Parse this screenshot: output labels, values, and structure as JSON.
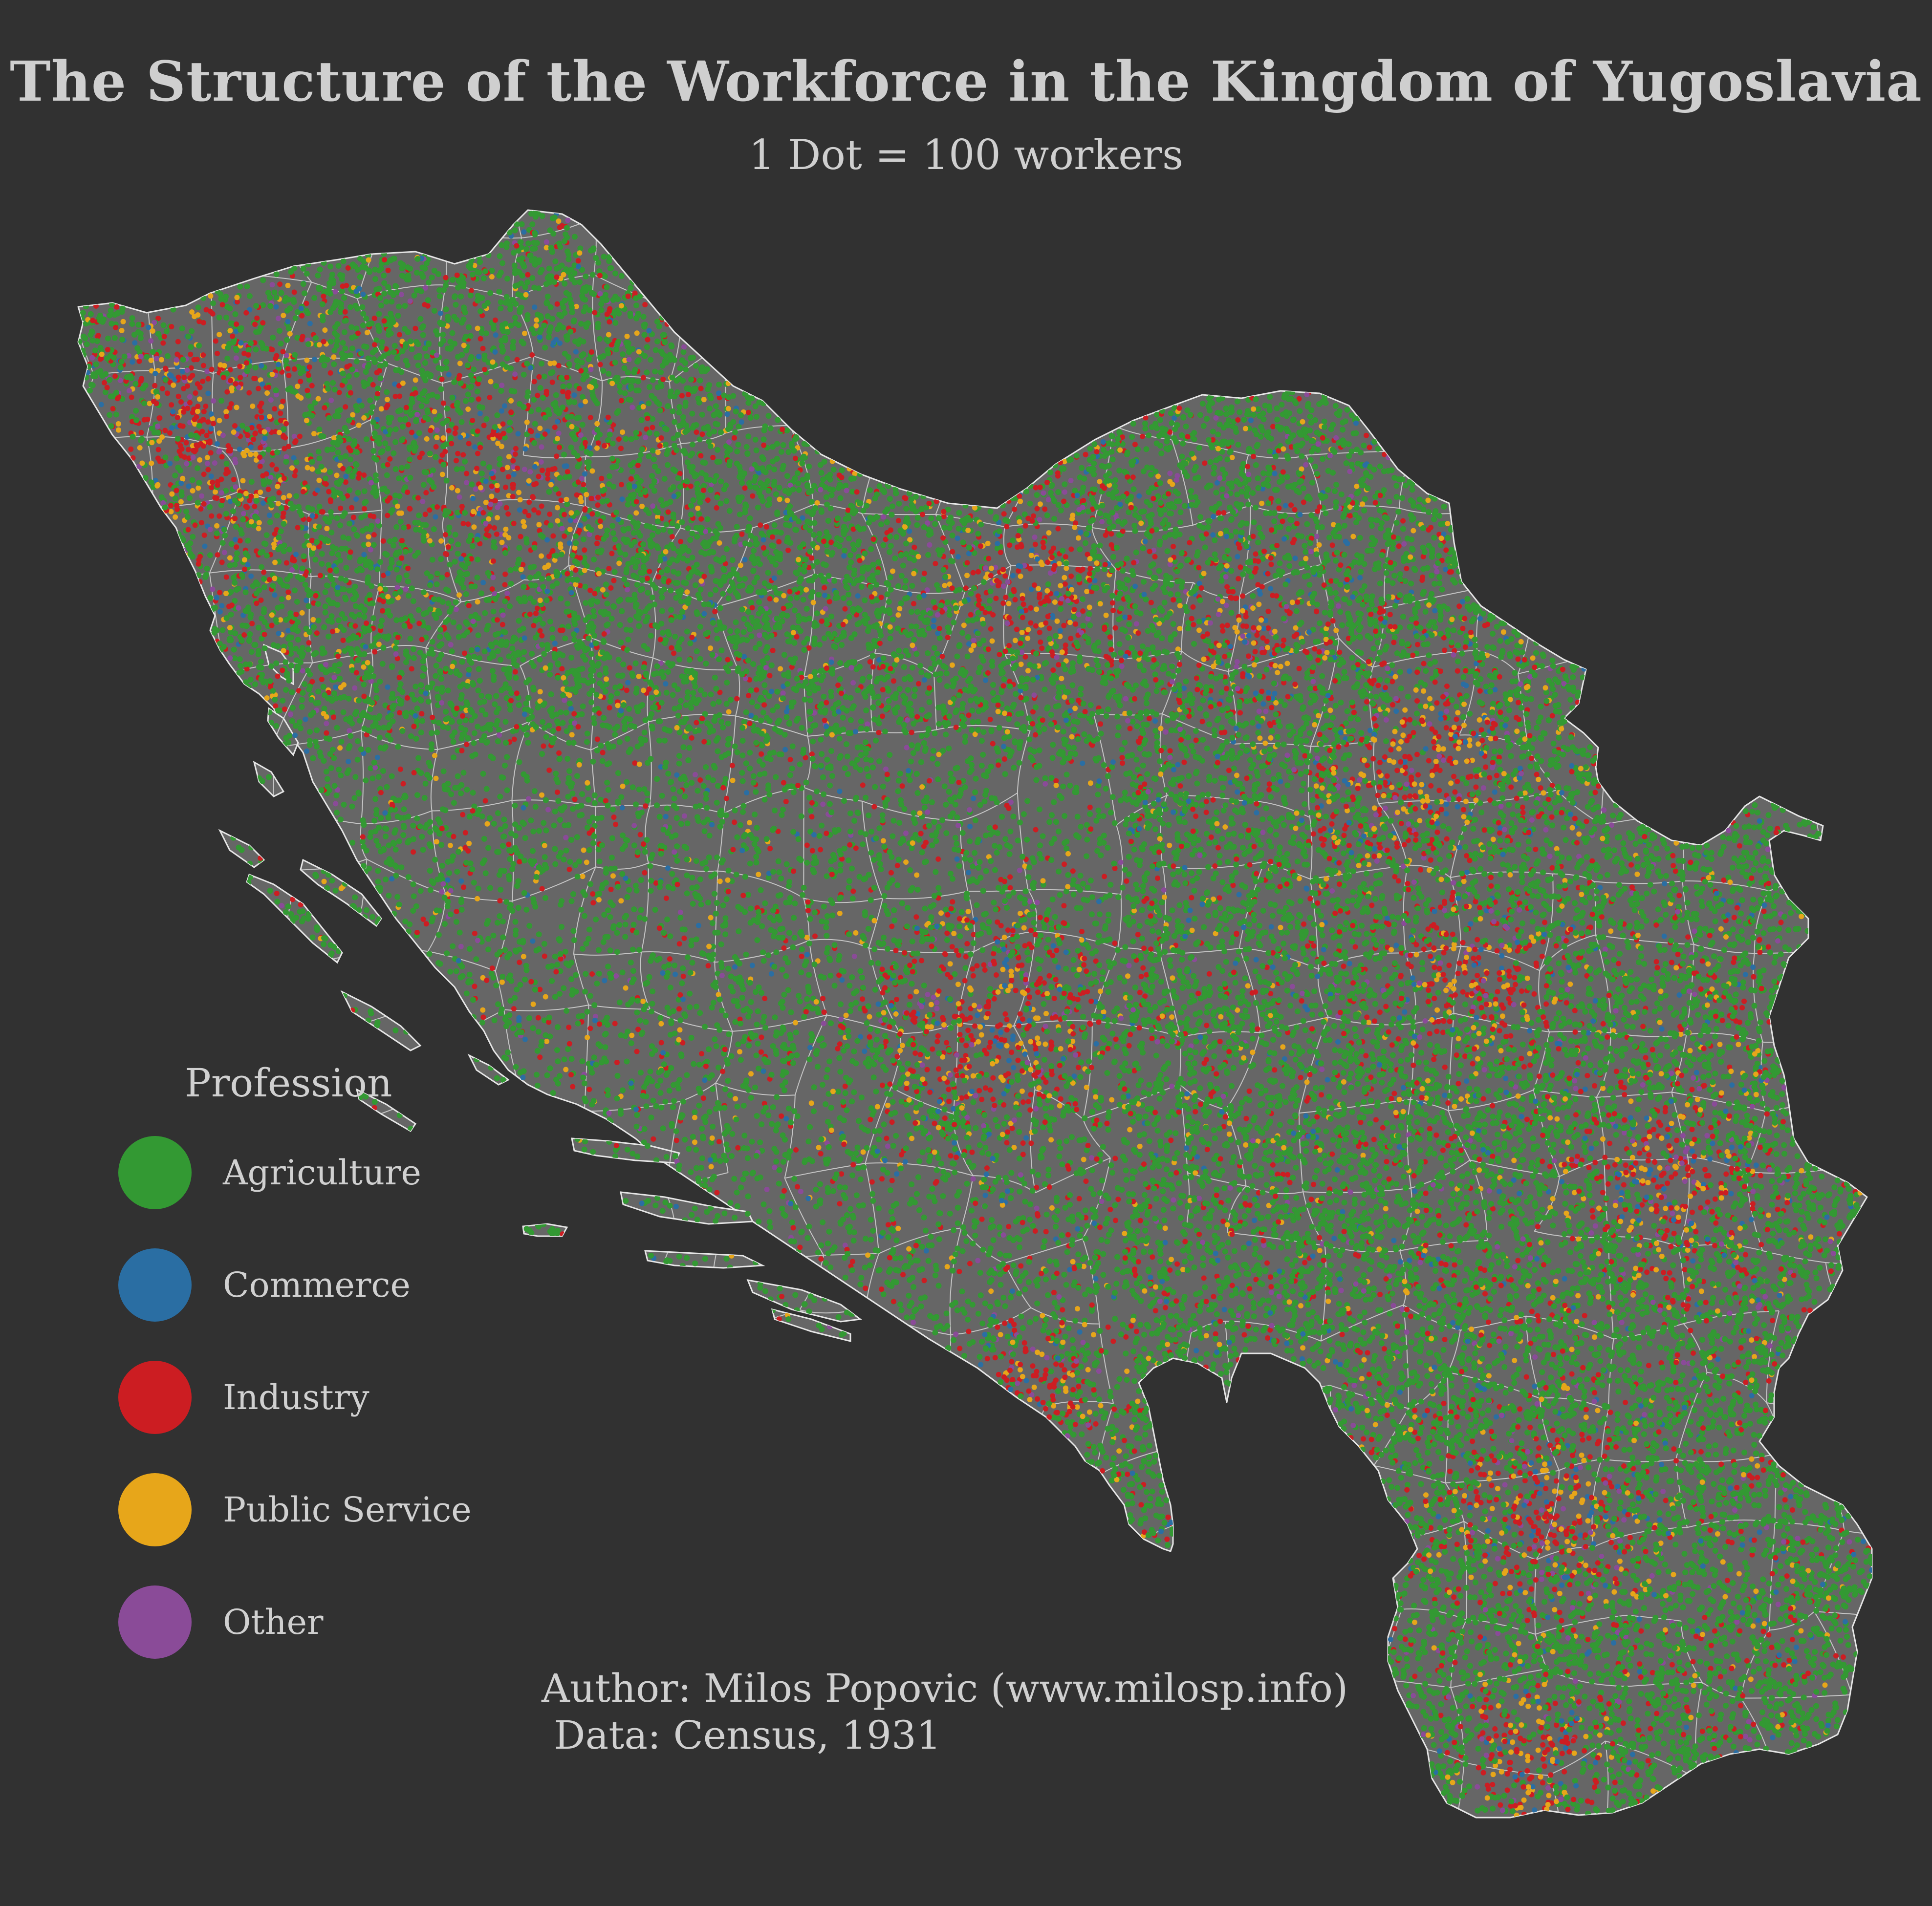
{
  "title": "The Structure of the Workforce in the Kingdom of Yugoslavia",
  "subtitle": "1 Dot = 100 workers",
  "legend": {
    "title": "Profession",
    "items": [
      {
        "label": "Agriculture",
        "color": "#339933"
      },
      {
        "label": "Commerce",
        "color": "#2a6ea3"
      },
      {
        "label": "Industry",
        "color": "#cc1d22"
      },
      {
        "label": "Public Service",
        "color": "#e7a61a"
      },
      {
        "label": "Other",
        "color": "#8a4b98"
      }
    ]
  },
  "credits": {
    "author": "Author: Milos Popovic (www.milosp.info)",
    "data": " Data: Census, 1931"
  },
  "colors": {
    "background": "#313131",
    "land": "#666666",
    "borders": "#e6e6e6"
  }
}
